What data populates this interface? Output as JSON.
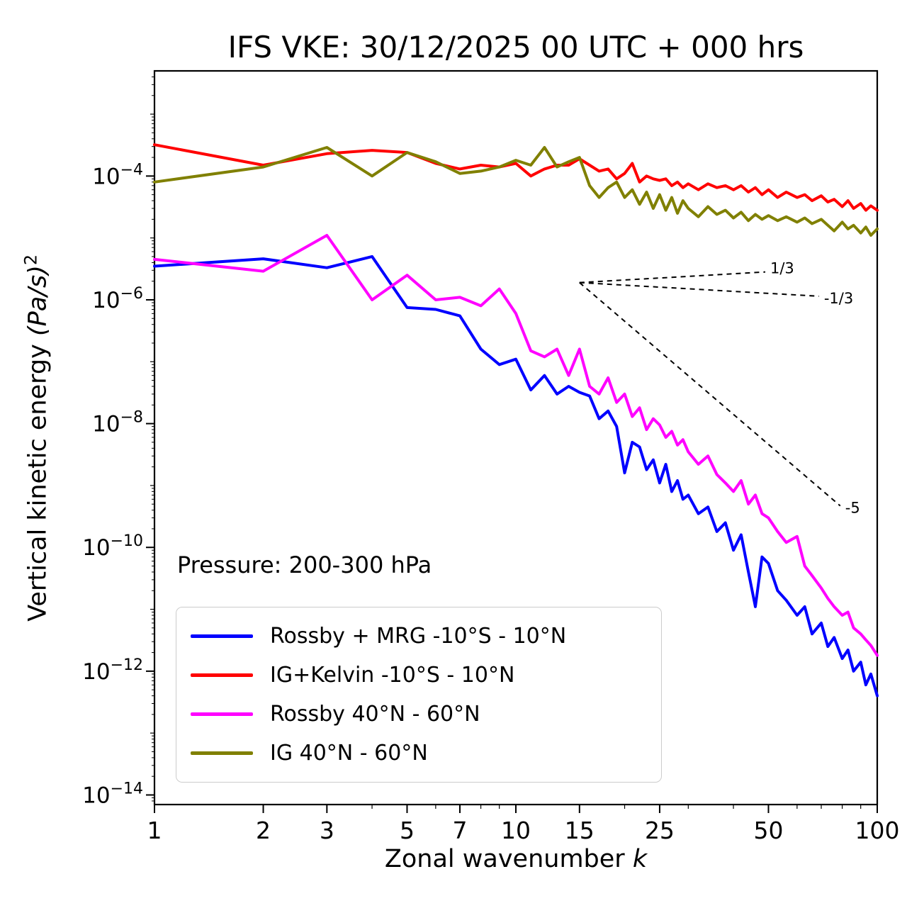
{
  "chart_data": {
    "type": "line",
    "title": "IFS VKE: 30/12/2025 00 UTC + 000 hrs",
    "xlabel": "Zonal wavenumber k",
    "ylabel": "Vertical kinetic energy (Pa/s)^2",
    "xlabel_parts": {
      "prefix": "Zonal wavenumber ",
      "italic": "k"
    },
    "ylabel_parts": {
      "prefix": "Vertical kinetic energy ",
      "italic": "(Pa/s)",
      "exponent": "2"
    },
    "annotation": "Pressure: 200-300 hPa",
    "x_scale": "log",
    "y_scale": "log",
    "xlim": [
      1,
      100
    ],
    "ylim": [
      7e-15,
      0.005
    ],
    "x_ticks": [
      1,
      2,
      3,
      5,
      7,
      10,
      15,
      25,
      50,
      100
    ],
    "y_tick_exponents": [
      -14,
      -12,
      -10,
      -8,
      -6,
      -4
    ],
    "grid": false,
    "legend_position": "lower left",
    "x": [
      1,
      2,
      3,
      4,
      5,
      6,
      7,
      8,
      9,
      10,
      11,
      12,
      13,
      14,
      15,
      16,
      17,
      18,
      19,
      20,
      21,
      22,
      23,
      24,
      25,
      26,
      27,
      28,
      29,
      30,
      32,
      34,
      36,
      38,
      40,
      42,
      44,
      46,
      48,
      50,
      53,
      56,
      60,
      63,
      66,
      70,
      73,
      76,
      80,
      83,
      86,
      90,
      93,
      96,
      100
    ],
    "series": [
      {
        "name": "Rossby + MRG -10°S - 10°N",
        "color": "#0000ff",
        "values": [
          3.5e-06,
          4.6e-06,
          3.3e-06,
          5e-06,
          7.5e-07,
          7e-07,
          5.5e-07,
          1.6e-07,
          9e-08,
          1.1e-07,
          3.5e-08,
          6e-08,
          3e-08,
          4e-08,
          3.2e-08,
          2.8e-08,
          1.2e-08,
          1.6e-08,
          9e-09,
          1.6e-09,
          5e-09,
          4.2e-09,
          1.8e-09,
          2.6e-09,
          1.1e-09,
          2.2e-09,
          8e-10,
          1.2e-09,
          6e-10,
          7e-10,
          3.5e-10,
          4.5e-10,
          1.8e-10,
          2.5e-10,
          9e-11,
          1.6e-10,
          4e-11,
          1.1e-11,
          7e-11,
          5.5e-11,
          2e-11,
          1.4e-11,
          8e-12,
          1.1e-11,
          4e-12,
          6e-12,
          2.5e-12,
          3.5e-12,
          1.6e-12,
          2.2e-12,
          1e-12,
          1.4e-12,
          6e-13,
          9e-13,
          4e-13
        ]
      },
      {
        "name": "IG+Kelvin -10°S - 10°N",
        "color": "#ff0000",
        "values": [
          0.00032,
          0.00015,
          0.00023,
          0.00026,
          0.00024,
          0.00016,
          0.00013,
          0.00015,
          0.00014,
          0.00016,
          0.0001,
          0.00013,
          0.00015,
          0.00015,
          0.00019,
          0.00015,
          0.00012,
          0.00013,
          9e-05,
          0.00011,
          0.00016,
          8e-05,
          0.0001,
          9e-05,
          8.5e-05,
          9e-05,
          7e-05,
          8e-05,
          6.5e-05,
          7.5e-05,
          6e-05,
          7.5e-05,
          6.5e-05,
          7e-05,
          6e-05,
          7e-05,
          5.5e-05,
          6.5e-05,
          5e-05,
          6e-05,
          4.5e-05,
          5.5e-05,
          4.5e-05,
          5e-05,
          4e-05,
          4.8e-05,
          3.8e-05,
          4.2e-05,
          3.2e-05,
          4e-05,
          3e-05,
          3.6e-05,
          2.8e-05,
          3.3e-05,
          2.8e-05
        ]
      },
      {
        "name": "Rossby 40°N - 60°N",
        "color": "#ff00ff",
        "values": [
          4.5e-06,
          2.9e-06,
          1.1e-05,
          1e-06,
          2.5e-06,
          1e-06,
          1.1e-06,
          8e-07,
          1.5e-06,
          6e-07,
          1.5e-07,
          1.2e-07,
          1.6e-07,
          6e-08,
          1.6e-07,
          4e-08,
          3e-08,
          5.5e-08,
          2.2e-08,
          3e-08,
          1.3e-08,
          1.8e-08,
          8e-09,
          1.2e-08,
          9.5e-09,
          6e-09,
          7.5e-09,
          4.5e-09,
          5.5e-09,
          3.5e-09,
          2.2e-09,
          3e-09,
          1.5e-09,
          1.1e-09,
          8e-10,
          1.2e-09,
          5e-10,
          7e-10,
          3.5e-10,
          3e-10,
          1.8e-10,
          1.2e-10,
          1.5e-10,
          5e-11,
          3.5e-11,
          2.2e-11,
          1.5e-11,
          1.1e-11,
          8e-12,
          9e-12,
          5e-12,
          4e-12,
          3.2e-12,
          2.6e-12,
          1.8e-12
        ]
      },
      {
        "name": "IG 40°N - 60°N",
        "color": "#808000",
        "values": [
          8e-05,
          0.00014,
          0.00029,
          0.0001,
          0.00024,
          0.00017,
          0.00011,
          0.00012,
          0.00014,
          0.00018,
          0.00015,
          0.00029,
          0.00014,
          0.00017,
          0.0002,
          7e-05,
          4.5e-05,
          6.5e-05,
          8e-05,
          4.5e-05,
          6e-05,
          3.5e-05,
          5.5e-05,
          3e-05,
          5e-05,
          2.8e-05,
          4.5e-05,
          2.5e-05,
          4e-05,
          3e-05,
          2.2e-05,
          3.2e-05,
          2.4e-05,
          2.8e-05,
          2.1e-05,
          2.6e-05,
          1.9e-05,
          2.4e-05,
          2e-05,
          2.3e-05,
          1.9e-05,
          2.2e-05,
          1.8e-05,
          2.1e-05,
          1.7e-05,
          2e-05,
          1.6e-05,
          1.3e-05,
          1.8e-05,
          1.4e-05,
          1.6e-05,
          1.2e-05,
          1.5e-05,
          1.1e-05,
          1.4e-05
        ]
      }
    ],
    "reference_lines": [
      {
        "label": "1/3",
        "slope": 0.3333,
        "x_start": 15,
        "x_end": 49,
        "y_start": 1.9e-06
      },
      {
        "label": "-1/3",
        "slope": -0.3333,
        "x_start": 15,
        "x_end": 69,
        "y_start": 1.9e-06
      },
      {
        "label": "-5",
        "slope": -5,
        "x_start": 15,
        "x_end": 79,
        "y_start": 1.9e-06
      }
    ]
  }
}
